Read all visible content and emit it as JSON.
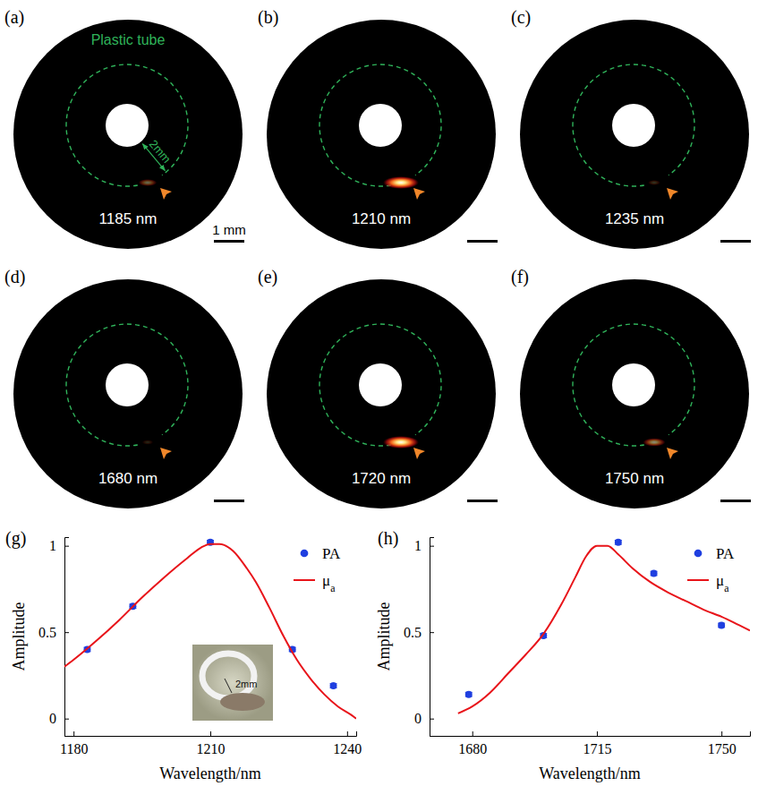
{
  "images": [
    {
      "letter": "(a)",
      "wavelength_label": "1185 nm",
      "pa_signal": 0.4
    },
    {
      "letter": "(b)",
      "wavelength_label": "1210 nm",
      "pa_signal": 1.0
    },
    {
      "letter": "(c)",
      "wavelength_label": "1235 nm",
      "pa_signal": 0.19
    },
    {
      "letter": "(d)",
      "wavelength_label": "1680 nm",
      "pa_signal": 0.14
    },
    {
      "letter": "(e)",
      "wavelength_label": "1720 nm",
      "pa_signal": 1.0
    },
    {
      "letter": "(f)",
      "wavelength_label": "1750 nm",
      "pa_signal": 0.54
    }
  ],
  "image_annotations": {
    "tube_label": "Plastic tube",
    "tube_radius_label": "2mm",
    "scale_bar_label": "1 mm"
  },
  "chart_data": [
    {
      "type": "line",
      "panel_label": "(g)",
      "x_label": "Wavelength/nm",
      "y_label": "Amplitude",
      "xlim": [
        1178,
        1242
      ],
      "xticks": [
        1180,
        1210,
        1240
      ],
      "ylim": [
        -0.1,
        1.05
      ],
      "yticks": [
        0,
        0.5,
        1
      ],
      "legend": "upper right",
      "inset_label": "2mm",
      "series": [
        {
          "name": "PA",
          "type": "scatter",
          "color": "#1f3fe0",
          "marker": "circle",
          "x": [
            1183,
            1193,
            1210,
            1228,
            1237
          ],
          "values": [
            0.4,
            0.65,
            1.02,
            0.4,
            0.19
          ],
          "errors": [
            0.012,
            0.012,
            0.012,
            0.012,
            0.012
          ]
        },
        {
          "name": "μa",
          "type": "line",
          "color": "#e8141a",
          "line_style": "solid",
          "x": [
            1178,
            1180,
            1185,
            1190,
            1195,
            1200,
            1205,
            1208,
            1210,
            1212,
            1215,
            1218,
            1220,
            1223,
            1226,
            1229,
            1232,
            1235,
            1238,
            1241,
            1242
          ],
          "values": [
            0.3,
            0.34,
            0.45,
            0.57,
            0.7,
            0.82,
            0.93,
            0.99,
            1.01,
            1.01,
            0.97,
            0.87,
            0.79,
            0.64,
            0.48,
            0.34,
            0.23,
            0.14,
            0.07,
            0.02,
            0.0
          ]
        }
      ]
    },
    {
      "type": "line",
      "panel_label": "(h)",
      "x_label": "Wavelength/nm",
      "y_label": "Amplitude",
      "xlim": [
        1668,
        1758
      ],
      "xticks": [
        1680,
        1715,
        1750
      ],
      "ylim": [
        -0.1,
        1.05
      ],
      "yticks": [
        0,
        0.5,
        1
      ],
      "legend": "upper right",
      "series": [
        {
          "name": "PA",
          "type": "scatter",
          "color": "#1f3fe0",
          "marker": "circle",
          "x": [
            1679,
            1700,
            1721,
            1731,
            1750
          ],
          "values": [
            0.14,
            0.48,
            1.02,
            0.84,
            0.54
          ],
          "errors": [
            0.012,
            0.012,
            0.012,
            0.012,
            0.012
          ]
        },
        {
          "name": "μa",
          "type": "line",
          "color": "#e8141a",
          "line_style": "solid",
          "x": [
            1676,
            1680,
            1685,
            1690,
            1695,
            1700,
            1705,
            1709,
            1712,
            1715,
            1718,
            1721,
            1725,
            1730,
            1735,
            1740,
            1745,
            1750,
            1755,
            1758
          ],
          "values": [
            0.03,
            0.07,
            0.15,
            0.26,
            0.37,
            0.49,
            0.66,
            0.82,
            0.94,
            1.0,
            1.0,
            0.95,
            0.87,
            0.79,
            0.73,
            0.68,
            0.63,
            0.59,
            0.54,
            0.51
          ]
        }
      ]
    }
  ]
}
